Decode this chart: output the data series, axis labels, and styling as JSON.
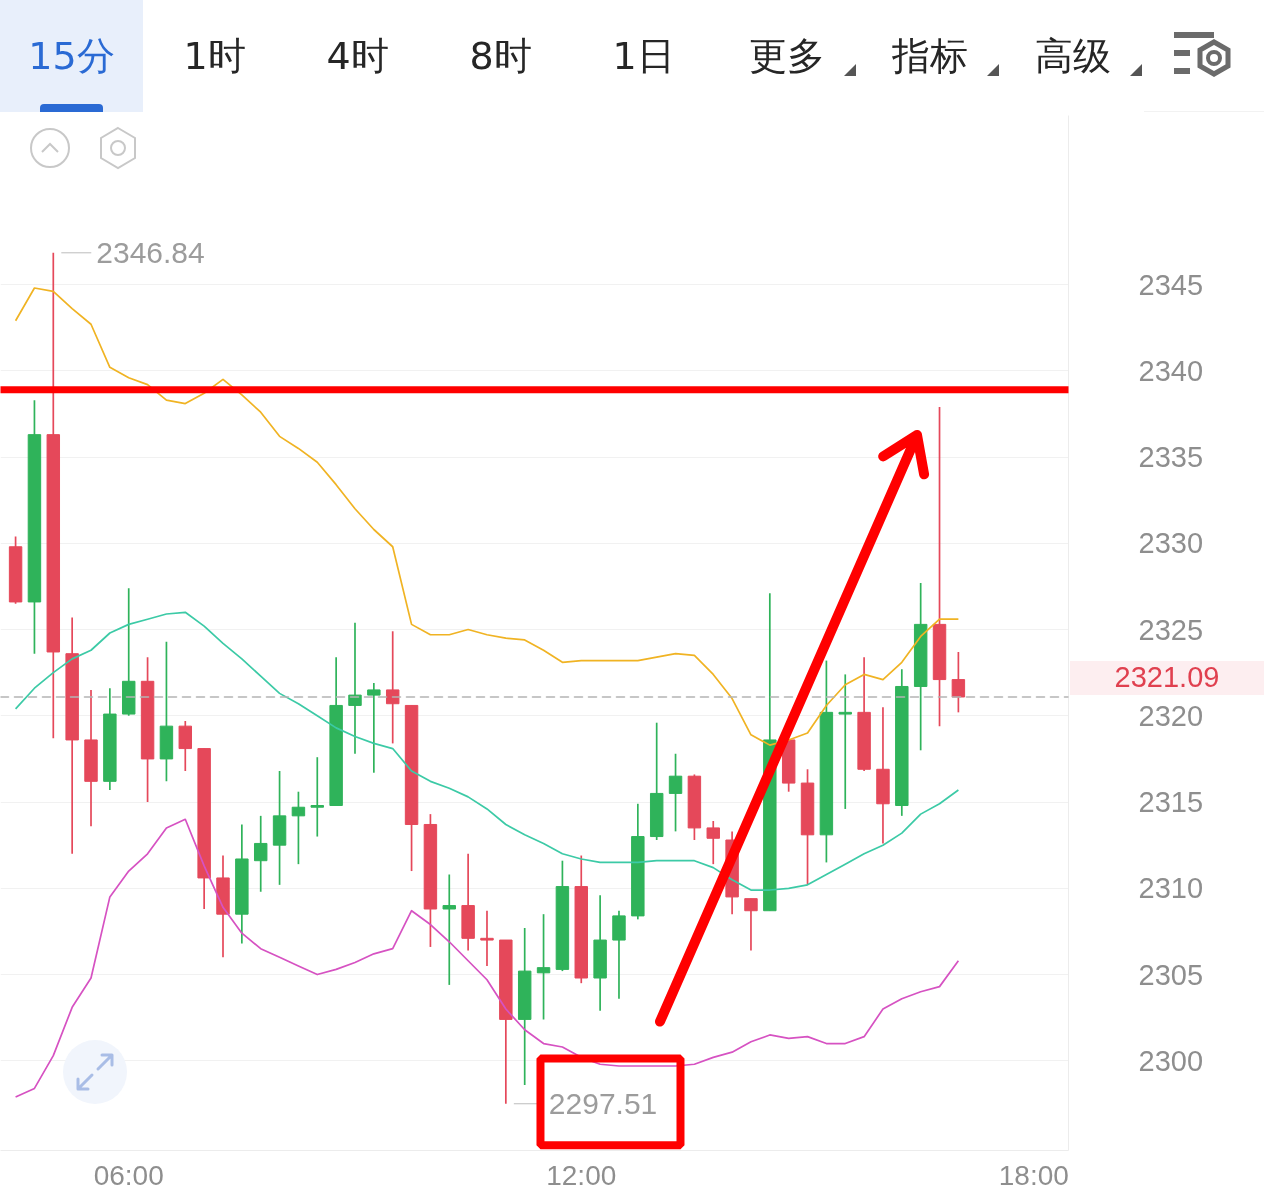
{
  "chart_data": {
    "type": "candlestick",
    "x": [
      4.5,
      4.75,
      5.0,
      5.25,
      5.5,
      5.75,
      6.0,
      6.25,
      6.5,
      6.75,
      7.0,
      7.25,
      7.5,
      7.75,
      8.0,
      8.25,
      8.5,
      8.75,
      9.0,
      9.25,
      9.5,
      9.75,
      10.0,
      10.25,
      10.5,
      10.75,
      11.0,
      11.25,
      11.5,
      11.75,
      12.0,
      12.25,
      12.5,
      12.75,
      13.0,
      13.25,
      13.5,
      13.75,
      14.0,
      14.25,
      14.5,
      14.75,
      15.0,
      15.25,
      15.5,
      15.75,
      16.0,
      16.25,
      16.5,
      16.75,
      17.0
    ],
    "ohlc": [
      [
        2329.8,
        2330.4,
        2326.5,
        2326.6
      ],
      [
        2326.6,
        2338.3,
        2323.6,
        2336.3
      ],
      [
        2336.3,
        2346.84,
        2318.7,
        2323.7
      ],
      [
        2323.6,
        2325.7,
        2312.0,
        2318.6
      ],
      [
        2318.6,
        2321.5,
        2313.6,
        2316.2
      ],
      [
        2316.2,
        2321.6,
        2315.7,
        2320.1
      ],
      [
        2320.1,
        2327.4,
        2320.0,
        2322.0
      ],
      [
        2322.0,
        2323.4,
        2315.0,
        2317.5
      ],
      [
        2317.5,
        2324.3,
        2316.2,
        2319.4
      ],
      [
        2319.4,
        2319.7,
        2316.8,
        2318.1
      ],
      [
        2318.1,
        2318.1,
        2308.8,
        2310.6
      ],
      [
        2310.6,
        2311.9,
        2306.0,
        2308.5
      ],
      [
        2308.5,
        2313.7,
        2306.8,
        2311.7
      ],
      [
        2311.6,
        2314.2,
        2309.8,
        2312.6
      ],
      [
        2312.5,
        2316.8,
        2310.2,
        2314.2
      ],
      [
        2314.2,
        2315.6,
        2311.4,
        2314.7
      ],
      [
        2314.7,
        2317.6,
        2313.0,
        2314.8
      ],
      [
        2314.8,
        2323.4,
        2314.8,
        2320.6
      ],
      [
        2320.6,
        2325.4,
        2317.8,
        2321.2
      ],
      [
        2321.2,
        2321.9,
        2316.7,
        2321.5
      ],
      [
        2321.5,
        2324.9,
        2318.4,
        2320.7
      ],
      [
        2320.6,
        2320.6,
        2311.0,
        2313.7
      ],
      [
        2313.7,
        2314.3,
        2306.6,
        2308.8
      ],
      [
        2308.8,
        2310.8,
        2304.4,
        2309.0
      ],
      [
        2309.0,
        2312.0,
        2306.4,
        2307.1
      ],
      [
        2307.1,
        2308.7,
        2305.5,
        2307.0
      ],
      [
        2307.0,
        2307.0,
        2297.51,
        2302.4
      ],
      [
        2302.4,
        2307.7,
        2298.6,
        2305.2
      ],
      [
        2305.1,
        2308.5,
        2302.4,
        2305.4
      ],
      [
        2305.3,
        2311.6,
        2305.2,
        2310.1
      ],
      [
        2310.1,
        2311.9,
        2304.5,
        2304.8
      ],
      [
        2304.8,
        2309.6,
        2302.9,
        2307.0
      ],
      [
        2307.0,
        2308.7,
        2303.6,
        2308.4
      ],
      [
        2308.4,
        2314.9,
        2308.2,
        2313.0
      ],
      [
        2313.0,
        2319.6,
        2312.8,
        2315.5
      ],
      [
        2315.5,
        2317.8,
        2313.3,
        2316.5
      ],
      [
        2316.5,
        2316.6,
        2312.8,
        2313.5
      ],
      [
        2313.5,
        2313.9,
        2311.4,
        2312.9
      ],
      [
        2312.8,
        2313.3,
        2308.5,
        2309.5
      ],
      [
        2309.4,
        2309.4,
        2306.4,
        2308.7
      ],
      [
        2308.7,
        2327.1,
        2308.7,
        2318.6
      ],
      [
        2318.6,
        2318.6,
        2315.6,
        2316.1
      ],
      [
        2316.1,
        2316.9,
        2310.2,
        2313.1
      ],
      [
        2313.1,
        2323.2,
        2311.5,
        2320.2
      ],
      [
        2320.1,
        2322.4,
        2314.6,
        2320.2
      ],
      [
        2320.2,
        2323.4,
        2316.8,
        2316.9
      ],
      [
        2316.9,
        2320.5,
        2312.6,
        2314.9
      ],
      [
        2314.8,
        2322.7,
        2314.2,
        2321.7
      ],
      [
        2321.7,
        2327.7,
        2318.0,
        2325.3
      ],
      [
        2325.3,
        2337.9,
        2319.4,
        2322.1
      ],
      [
        2322.1,
        2323.7,
        2320.2,
        2321.09
      ]
    ],
    "colors": [
      "#e5485a",
      "#2fb35a",
      "#e5485a",
      "#e5485a",
      "#e5485a",
      "#2fb35a",
      "#2fb35a",
      "#e5485a",
      "#2fb35a",
      "#e5485a",
      "#e5485a",
      "#e5485a",
      "#2fb35a",
      "#2fb35a",
      "#2fb35a",
      "#2fb35a",
      "#2fb35a",
      "#2fb35a",
      "#2fb35a",
      "#2fb35a",
      "#e5485a",
      "#e5485a",
      "#e5485a",
      "#2fb35a",
      "#e5485a",
      "#e5485a",
      "#e5485a",
      "#2fb35a",
      "#2fb35a",
      "#2fb35a",
      "#e5485a",
      "#2fb35a",
      "#2fb35a",
      "#2fb35a",
      "#2fb35a",
      "#2fb35a",
      "#e5485a",
      "#e5485a",
      "#e5485a",
      "#e5485a",
      "#2fb35a",
      "#e5485a",
      "#e5485a",
      "#2fb35a",
      "#2fb35a",
      "#e5485a",
      "#e5485a",
      "#2fb35a",
      "#2fb35a",
      "#e5485a",
      "#e5485a"
    ],
    "series": [
      {
        "type": "line",
        "color": "#f0b323",
        "values": [
          2342.9,
          2344.8,
          2344.6,
          2343.6,
          2342.7,
          2340.2,
          2339.6,
          2339.2,
          2338.3,
          2338.1,
          2338.7,
          2339.5,
          2338.6,
          2337.6,
          2336.2,
          2335.5,
          2334.7,
          2333.4,
          2332.0,
          2330.8,
          2329.8,
          2325.3,
          2324.7,
          2324.7,
          2325.0,
          2324.7,
          2324.5,
          2324.4,
          2323.8,
          2323.1,
          2323.2,
          2323.2,
          2323.2,
          2323.2,
          2323.4,
          2323.6,
          2323.5,
          2322.4,
          2321.0,
          2318.9,
          2318.3,
          2318.6,
          2319.0,
          2320.6,
          2321.8,
          2322.4,
          2322.1,
          2323.1,
          2324.6,
          2325.6,
          2325.6
        ]
      },
      {
        "type": "line",
        "color": "#3ccaa6",
        "values": [
          2320.4,
          2321.6,
          2322.5,
          2323.3,
          2323.8,
          2324.8,
          2325.3,
          2325.6,
          2325.9,
          2326.0,
          2325.2,
          2324.2,
          2323.3,
          2322.3,
          2321.3,
          2320.7,
          2320.0,
          2319.3,
          2318.8,
          2318.4,
          2318.1,
          2316.8,
          2316.2,
          2315.8,
          2315.3,
          2314.6,
          2313.7,
          2313.1,
          2312.6,
          2312.0,
          2311.7,
          2311.5,
          2311.5,
          2311.5,
          2311.6,
          2311.6,
          2311.6,
          2311.2,
          2310.5,
          2309.9,
          2309.9,
          2310.0,
          2310.2,
          2310.8,
          2311.4,
          2312.0,
          2312.5,
          2313.2,
          2314.3,
          2314.9,
          2315.7
        ]
      },
      {
        "type": "line",
        "color": "#d652c2",
        "values": [
          2297.9,
          2298.4,
          2300.3,
          2303.1,
          2304.8,
          2309.5,
          2311.0,
          2312.0,
          2313.5,
          2314.0,
          2311.3,
          2308.9,
          2307.4,
          2306.5,
          2306.0,
          2305.5,
          2305.0,
          2305.3,
          2305.7,
          2306.2,
          2306.5,
          2308.7,
          2307.9,
          2306.9,
          2305.8,
          2304.7,
          2303.0,
          2301.8,
          2301.0,
          2300.8,
          2300.2,
          2299.8,
          2299.7,
          2299.7,
          2299.7,
          2299.7,
          2299.8,
          2300.2,
          2300.5,
          2301.1,
          2301.5,
          2301.3,
          2301.4,
          2301.0,
          2301.0,
          2301.4,
          2303.0,
          2303.6,
          2304.0,
          2304.3,
          2305.8
        ]
      }
    ],
    "xlim": [
      4.3,
      18.46
    ],
    "ylim": [
      2294.8,
      2354.8
    ],
    "xticks": [
      {
        "value": 6,
        "label": "06:00"
      },
      {
        "value": 12,
        "label": "12:00"
      },
      {
        "value": 18,
        "label": "18:00"
      }
    ],
    "yticks": [
      2300,
      2305,
      2310,
      2315,
      2320,
      2325,
      2330,
      2335,
      2340,
      2345
    ],
    "grid": "y",
    "ref_lines": [
      {
        "axis": "y",
        "value": 2338.9,
        "color": "#ff0000"
      },
      {
        "axis": "y",
        "value": 2321.09,
        "label": "2321.09",
        "color": "#b4b4b4",
        "line_style": "dashed"
      }
    ],
    "annotations": [
      "15分",
      "1时",
      "4时",
      "8时",
      "1日",
      "更多",
      "指标",
      "高级",
      {
        "text": "2346.84",
        "x": 5.0,
        "y": 2346.84
      },
      {
        "text": "2297.51",
        "x": 11.0,
        "y": 2297.51
      }
    ]
  }
}
